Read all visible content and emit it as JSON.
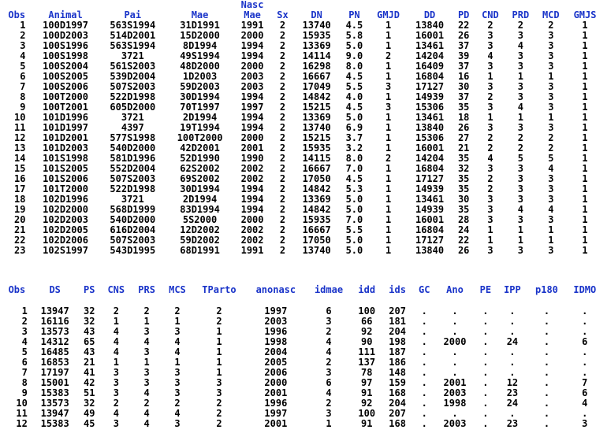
{
  "table1": {
    "columns": [
      [
        "",
        "Obs"
      ],
      [
        "",
        "Animal"
      ],
      [
        "",
        "Pai"
      ],
      [
        "",
        "Mae"
      ],
      [
        "Nasc",
        "Mae"
      ],
      [
        "",
        "Sx"
      ],
      [
        "",
        "DN"
      ],
      [
        "",
        "PN"
      ],
      [
        "",
        "GMJD"
      ],
      [
        "",
        "DD"
      ],
      [
        "",
        "PD"
      ],
      [
        "",
        "CND"
      ],
      [
        "",
        "PRD"
      ],
      [
        "",
        "MCD"
      ],
      [
        "",
        "GMJS"
      ]
    ],
    "rows": [
      [
        "1",
        "100D1997",
        "563S1994",
        "31D1991",
        "1991",
        "2",
        "13740",
        "4.5",
        "1",
        "13840",
        "22",
        "2",
        "2",
        "2",
        "1"
      ],
      [
        "2",
        "100D2003",
        "514D2001",
        "15D2000",
        "2000",
        "2",
        "15935",
        "5.8",
        "1",
        "16001",
        "26",
        "3",
        "3",
        "3",
        "1"
      ],
      [
        "3",
        "100S1996",
        "563S1994",
        "8D1994",
        "1994",
        "2",
        "13369",
        "5.0",
        "1",
        "13461",
        "37",
        "3",
        "4",
        "3",
        "1"
      ],
      [
        "4",
        "100S1998",
        "3721",
        "49S1994",
        "1994",
        "2",
        "14114",
        "9.0",
        "2",
        "14204",
        "39",
        "4",
        "3",
        "3",
        "1"
      ],
      [
        "5",
        "100S2004",
        "561S2003",
        "48D2000",
        "2000",
        "2",
        "16298",
        "8.0",
        "1",
        "16409",
        "37",
        "3",
        "3",
        "3",
        "1"
      ],
      [
        "6",
        "100S2005",
        "539D2004",
        "1D2003",
        "2003",
        "2",
        "16667",
        "4.5",
        "1",
        "16804",
        "16",
        "1",
        "1",
        "1",
        "1"
      ],
      [
        "7",
        "100S2006",
        "507S2003",
        "59D2003",
        "2003",
        "2",
        "17049",
        "5.5",
        "3",
        "17127",
        "30",
        "3",
        "3",
        "3",
        "1"
      ],
      [
        "8",
        "100T2000",
        "522D1998",
        "30D1994",
        "1994",
        "2",
        "14842",
        "4.0",
        "1",
        "14939",
        "37",
        "2",
        "3",
        "3",
        "1"
      ],
      [
        "9",
        "100T2001",
        "605D2000",
        "70T1997",
        "1997",
        "2",
        "15215",
        "4.5",
        "3",
        "15306",
        "35",
        "3",
        "4",
        "3",
        "1"
      ],
      [
        "10",
        "101D1996",
        "3721",
        "2D1994",
        "1994",
        "2",
        "13369",
        "5.0",
        "1",
        "13461",
        "18",
        "1",
        "1",
        "1",
        "1"
      ],
      [
        "11",
        "101D1997",
        "4397",
        "19T1994",
        "1994",
        "2",
        "13740",
        "6.9",
        "1",
        "13840",
        "26",
        "3",
        "3",
        "3",
        "1"
      ],
      [
        "12",
        "101D2001",
        "577S1998",
        "100T2000",
        "2000",
        "2",
        "15215",
        "3.7",
        "1",
        "15306",
        "27",
        "2",
        "2",
        "2",
        "1"
      ],
      [
        "13",
        "101D2003",
        "540D2000",
        "42D2001",
        "2001",
        "2",
        "15935",
        "3.2",
        "1",
        "16001",
        "21",
        "2",
        "2",
        "2",
        "1"
      ],
      [
        "14",
        "101S1998",
        "581D1996",
        "52D1990",
        "1990",
        "2",
        "14115",
        "8.0",
        "2",
        "14204",
        "35",
        "4",
        "5",
        "5",
        "1"
      ],
      [
        "15",
        "101S2005",
        "552D2004",
        "62S2002",
        "2002",
        "2",
        "16667",
        "7.0",
        "1",
        "16804",
        "32",
        "3",
        "3",
        "4",
        "1"
      ],
      [
        "16",
        "101S2006",
        "507S2003",
        "69S2002",
        "2002",
        "2",
        "17050",
        "4.5",
        "1",
        "17127",
        "35",
        "2",
        "3",
        "3",
        "1"
      ],
      [
        "17",
        "101T2000",
        "522D1998",
        "30D1994",
        "1994",
        "2",
        "14842",
        "5.3",
        "1",
        "14939",
        "35",
        "2",
        "3",
        "3",
        "1"
      ],
      [
        "18",
        "102D1996",
        "3721",
        "2D1994",
        "1994",
        "2",
        "13369",
        "5.0",
        "1",
        "13461",
        "30",
        "3",
        "3",
        "3",
        "1"
      ],
      [
        "19",
        "102D2000",
        "568D1999",
        "83D1994",
        "1994",
        "2",
        "14842",
        "5.0",
        "1",
        "14939",
        "35",
        "3",
        "4",
        "4",
        "1"
      ],
      [
        "20",
        "102D2003",
        "540D2000",
        "5S2000",
        "2000",
        "2",
        "15935",
        "7.0",
        "1",
        "16001",
        "28",
        "3",
        "3",
        "3",
        "1"
      ],
      [
        "21",
        "102D2005",
        "616D2004",
        "12D2002",
        "2002",
        "2",
        "16667",
        "5.5",
        "1",
        "16804",
        "24",
        "1",
        "1",
        "1",
        "1"
      ],
      [
        "22",
        "102D2006",
        "507S2003",
        "59D2002",
        "2002",
        "2",
        "17050",
        "5.0",
        "1",
        "17127",
        "22",
        "1",
        "1",
        "1",
        "1"
      ],
      [
        "23",
        "102S1997",
        "543D1995",
        "68D1991",
        "1991",
        "2",
        "13740",
        "5.0",
        "1",
        "13840",
        "26",
        "3",
        "3",
        "3",
        "1"
      ]
    ]
  },
  "table2": {
    "columns": [
      "Obs",
      "DS",
      "PS",
      "CNS",
      "PRS",
      "MCS",
      "TParto",
      "anonasc",
      "idmae",
      "idd",
      "ids",
      "GC",
      "Ano",
      "PE",
      "IPP",
      "p180",
      "IDMO"
    ],
    "rows": [
      [
        "1",
        "13947",
        "32",
        "2",
        "2",
        "2",
        "2",
        "1997",
        "6",
        "100",
        "207",
        ".",
        ".",
        ".",
        ".",
        ".",
        "."
      ],
      [
        "2",
        "16116",
        "32",
        "1",
        "1",
        "1",
        "2",
        "2003",
        "3",
        "66",
        "181",
        ".",
        ".",
        ".",
        ".",
        ".",
        "."
      ],
      [
        "3",
        "13573",
        "43",
        "4",
        "3",
        "3",
        "1",
        "1996",
        "2",
        "92",
        "204",
        ".",
        ".",
        ".",
        ".",
        ".",
        "."
      ],
      [
        "4",
        "14312",
        "65",
        "4",
        "4",
        "4",
        "1",
        "1998",
        "4",
        "90",
        "198",
        ".",
        "2000",
        ".",
        "24",
        ".",
        "6"
      ],
      [
        "5",
        "16485",
        "43",
        "4",
        "3",
        "4",
        "1",
        "2004",
        "4",
        "111",
        "187",
        ".",
        ".",
        ".",
        ".",
        ".",
        "."
      ],
      [
        "6",
        "16853",
        "21",
        "1",
        "1",
        "1",
        "1",
        "2005",
        "2",
        "137",
        "186",
        ".",
        ".",
        ".",
        ".",
        ".",
        "."
      ],
      [
        "7",
        "17197",
        "41",
        "3",
        "3",
        "3",
        "1",
        "2006",
        "3",
        "78",
        "148",
        ".",
        ".",
        ".",
        ".",
        ".",
        "."
      ],
      [
        "8",
        "15001",
        "42",
        "3",
        "3",
        "3",
        "3",
        "2000",
        "6",
        "97",
        "159",
        ".",
        "2001",
        ".",
        "12",
        ".",
        "7"
      ],
      [
        "9",
        "15383",
        "51",
        "3",
        "4",
        "3",
        "3",
        "2001",
        "4",
        "91",
        "168",
        ".",
        "2003",
        ".",
        "23",
        ".",
        "6"
      ],
      [
        "10",
        "13573",
        "32",
        "2",
        "2",
        "2",
        "2",
        "1996",
        "2",
        "92",
        "204",
        ".",
        "1998",
        ".",
        "24",
        ".",
        "4"
      ],
      [
        "11",
        "13947",
        "49",
        "4",
        "4",
        "4",
        "2",
        "1997",
        "3",
        "100",
        "207",
        ".",
        ".",
        ".",
        ".",
        ".",
        "."
      ],
      [
        "12",
        "15383",
        "45",
        "3",
        "4",
        "3",
        "2",
        "2001",
        "1",
        "91",
        "168",
        ".",
        "2003",
        ".",
        "23",
        ".",
        "3"
      ]
    ]
  }
}
